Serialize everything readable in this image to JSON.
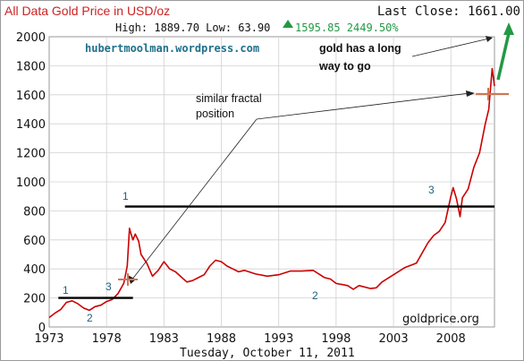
{
  "header": {
    "title": "All Data Gold Price in USD/oz",
    "last_close": "Last Close: 1661.00",
    "stats_prefix": "High: 1889.70 Low: 63.90",
    "change": "1595.85 2449.50%"
  },
  "date_label": "Tuesday, October 11, 2011",
  "watermark": "goldprice.org",
  "url": "hubertmoolman.wordpress.com",
  "annotations": {
    "similar": [
      "similar fractal",
      "position"
    ],
    "long_way": [
      "gold has a long",
      "way to go"
    ],
    "markers": [
      "1",
      "2",
      "3",
      "1",
      "2",
      "3"
    ]
  },
  "colors": {
    "title": "#cc2222",
    "price_line": "#cc0000",
    "up_arrow": "#229944",
    "change_text": "#229944",
    "url_text": "#1f6f8b",
    "marker_text": "#1f5f80",
    "level_line": "#000000",
    "fractal_marker": "#cc7755",
    "grid": "#d0d0d0"
  },
  "chart_data": {
    "type": "line",
    "title": "All Data Gold Price in USD/oz",
    "xlabel": "Tuesday, October 11, 2011",
    "ylabel": "",
    "x_ticks": [
      "1973",
      "1978",
      "1983",
      "1988",
      "1993",
      "1998",
      "2003",
      "2008"
    ],
    "y_ticks": [
      "0",
      "200",
      "400",
      "600",
      "800",
      "1000",
      "1200",
      "1400",
      "1600",
      "1800",
      "2000"
    ],
    "xlim": [
      1973,
      2011.8
    ],
    "ylim": [
      0,
      2000
    ],
    "grid": true,
    "series": [
      {
        "x": [
          1973.0,
          1973.5,
          1974.0,
          1974.5,
          1975.0,
          1975.5,
          1976.0,
          1976.5,
          1977.0,
          1977.5,
          1978.0,
          1978.5,
          1979.0,
          1979.5,
          1979.8,
          1980.0,
          1980.1,
          1980.3,
          1980.5,
          1980.8,
          1981.0,
          1981.5,
          1982.0,
          1982.5,
          1983.0,
          1983.5,
          1984.0,
          1984.5,
          1985.0,
          1985.5,
          1986.0,
          1986.5,
          1987.0,
          1987.5,
          1988.0,
          1988.5,
          1989.0,
          1989.5,
          1990.0,
          1991.0,
          1992.0,
          1993.0,
          1994.0,
          1995.0,
          1996.0,
          1997.0,
          1997.5,
          1998.0,
          1999.0,
          1999.5,
          2000.0,
          2001.0,
          2001.5,
          2002.0,
          2003.0,
          2004.0,
          2005.0,
          2006.0,
          2006.5,
          2007.0,
          2007.5,
          2008.0,
          2008.2,
          2008.5,
          2008.8,
          2009.0,
          2009.5,
          2010.0,
          2010.5,
          2011.0,
          2011.3,
          2011.6,
          2011.8
        ],
        "y": [
          65,
          95,
          120,
          170,
          180,
          160,
          130,
          115,
          140,
          150,
          175,
          190,
          230,
          300,
          420,
          680,
          650,
          600,
          640,
          590,
          500,
          440,
          350,
          390,
          450,
          400,
          380,
          345,
          310,
          320,
          340,
          360,
          420,
          460,
          450,
          420,
          400,
          380,
          390,
          365,
          350,
          360,
          385,
          385,
          390,
          340,
          330,
          300,
          285,
          260,
          285,
          265,
          270,
          310,
          360,
          410,
          440,
          580,
          630,
          660,
          720,
          900,
          960,
          880,
          760,
          890,
          950,
          1100,
          1200,
          1400,
          1500,
          1780,
          1660
        ]
      }
    ],
    "reference_lines": [
      {
        "y": 830,
        "x_from": 1979.6,
        "x_to": 2011.8
      },
      {
        "y": 200,
        "x_from": 1973.8,
        "x_to": 1980.3
      }
    ]
  }
}
